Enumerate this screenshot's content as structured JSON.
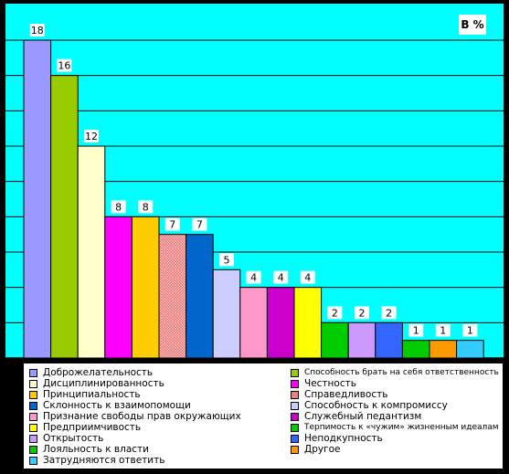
{
  "chart_data": {
    "type": "bar",
    "unit_label": "В %",
    "ylim": [
      0,
      18
    ],
    "grid": true,
    "legend_placement": "bottom",
    "bars": [
      {
        "label": "Доброжелательность",
        "value": 18,
        "color": "#9999ff"
      },
      {
        "label": "Способность брать на себя ответственность",
        "value": 16,
        "color": "#99cc00"
      },
      {
        "label": "Дисциплинированность",
        "value": 12,
        "color": "#ffffcc"
      },
      {
        "label": "Честность",
        "value": 8,
        "color": "#ff00ff"
      },
      {
        "label": "Принципиальность",
        "value": 8,
        "color": "#ffcc00"
      },
      {
        "label": "Справедливость",
        "value": 7,
        "color": "#f08080",
        "pattern": true
      },
      {
        "label": "Склонность к взаимопомощи",
        "value": 7,
        "color": "#0066cc"
      },
      {
        "label": "Способность к компромиссу",
        "value": 5,
        "color": "#ccccff"
      },
      {
        "label": "Признание свободы прав окружающих",
        "value": 4,
        "color": "#ff99cc"
      },
      {
        "label": "Служебный педантизм",
        "value": 4,
        "color": "#cc00cc"
      },
      {
        "label": "Предприимчивость",
        "value": 4,
        "color": "#ffff00"
      },
      {
        "label": "Терпимость к «чужим» жизненным идеалам",
        "value": 2,
        "color": "#00cc00"
      },
      {
        "label": "Открытость",
        "value": 2,
        "color": "#cc99ff"
      },
      {
        "label": "Неподкупность",
        "value": 2,
        "color": "#3366ff"
      },
      {
        "label": "Лояльность к власти",
        "value": 1,
        "color": "#00cc00"
      },
      {
        "label": "Другое",
        "value": 1,
        "color": "#ff9900"
      },
      {
        "label": "Затрудняются ответить",
        "value": 1,
        "color": "#33ccff"
      }
    ]
  },
  "legend": {
    "col1": [
      {
        "label": "Доброжелательность",
        "color": "#9999ff"
      },
      {
        "label": "Дисциплинированность",
        "color": "#ffffcc"
      },
      {
        "label": "Принципиальность",
        "color": "#ffcc00"
      },
      {
        "label": "Склонность к взаимопомощи",
        "color": "#0066cc"
      },
      {
        "label": "Признание свободы прав окружающих",
        "color": "#ff99cc"
      },
      {
        "label": "Предприимчивость",
        "color": "#ffff00"
      },
      {
        "label": "Открытость",
        "color": "#cc99ff"
      },
      {
        "label": "Лояльность к власти",
        "color": "#00cc00"
      },
      {
        "label": "Затрудняются ответить",
        "color": "#33ccff"
      }
    ],
    "col2": [
      {
        "label": "Способность брать на себя ответственность",
        "color": "#99cc00"
      },
      {
        "label": "Честность",
        "color": "#ff00ff"
      },
      {
        "label": "Справедливость",
        "color": "#f08080"
      },
      {
        "label": "Способность к компромиссу",
        "color": "#ccccff"
      },
      {
        "label": "Служебный педантизм",
        "color": "#cc00cc"
      },
      {
        "label": "Терпимость к «чужим» жизненным идеалам",
        "color": "#00cc00"
      },
      {
        "label": "Неподкупность",
        "color": "#3366ff"
      },
      {
        "label": "Другое",
        "color": "#ff9900"
      }
    ]
  }
}
